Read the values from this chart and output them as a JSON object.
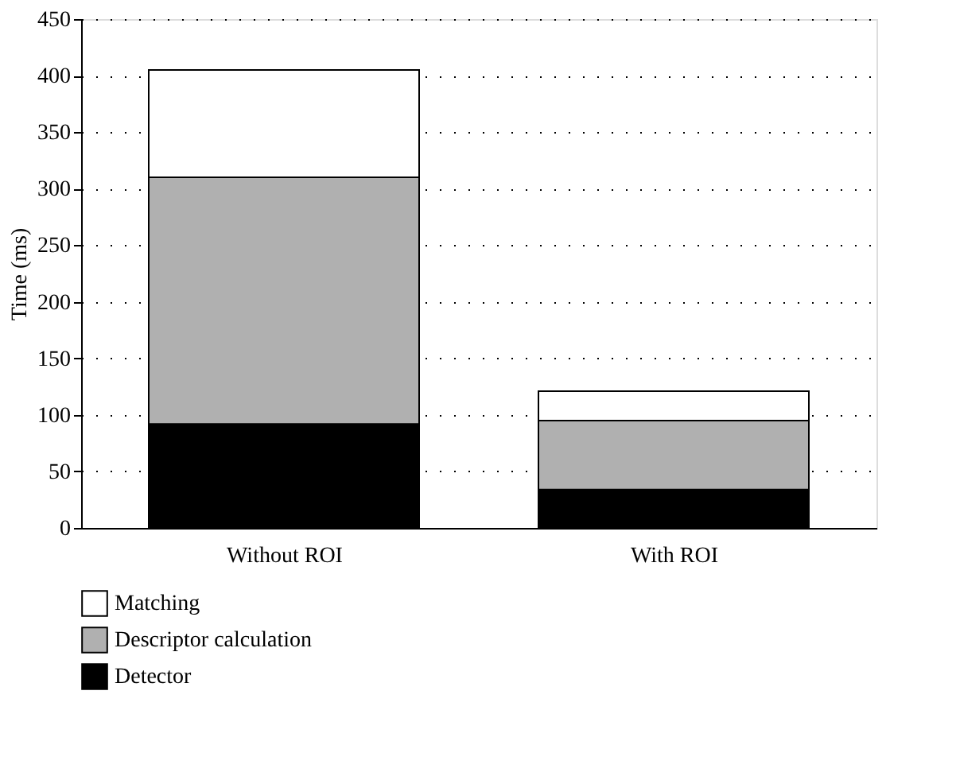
{
  "chart_data": {
    "type": "bar",
    "stacked": true,
    "ylabel": "Time (ms)",
    "categories": [
      "Without ROI",
      "With ROI"
    ],
    "series": [
      {
        "name": "Detector",
        "color": "#000000",
        "values": [
          92,
          34
        ]
      },
      {
        "name": "Descriptor calculation",
        "color": "#b0b0b0",
        "values": [
          218,
          61
        ]
      },
      {
        "name": "Matching",
        "color": "#ffffff",
        "values": [
          95,
          26
        ]
      }
    ],
    "ylim": [
      0,
      450
    ],
    "yticks": [
      0,
      50,
      100,
      150,
      200,
      250,
      300,
      350,
      400,
      450
    ],
    "grid": "y",
    "legend": "bottom left"
  }
}
